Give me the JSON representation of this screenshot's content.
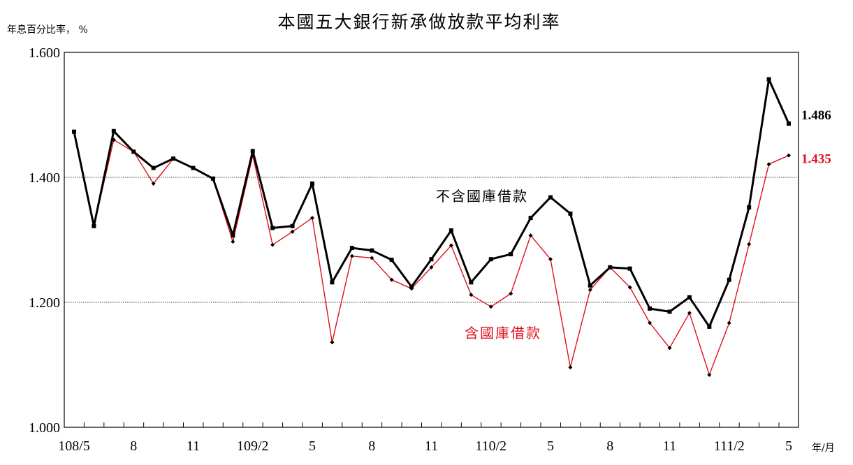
{
  "chart_data": {
    "type": "line",
    "title": "本國五大銀行新承做放款平均利率",
    "ylabel": "年息百分比率，  %",
    "xlabel": "年/月",
    "ylim": [
      1.0,
      1.6
    ],
    "yticks": [
      "1.000",
      "1.200",
      "1.400",
      "1.600"
    ],
    "gridlines": [
      1.2,
      1.4
    ],
    "x": [
      "108/5",
      "108/6",
      "108/7",
      "108/8",
      "108/9",
      "108/10",
      "108/11",
      "108/12",
      "109/1",
      "109/2",
      "109/3",
      "109/4",
      "109/5",
      "109/6",
      "109/7",
      "109/8",
      "109/9",
      "109/10",
      "109/11",
      "109/12",
      "110/1",
      "110/2",
      "110/3",
      "110/4",
      "110/5",
      "110/6",
      "110/7",
      "110/8",
      "110/9",
      "110/10",
      "110/11",
      "110/12",
      "111/1",
      "111/2",
      "111/3",
      "111/4",
      "111/5"
    ],
    "xtick_labels": [
      {
        "x": "108/5",
        "label": "108/5"
      },
      {
        "x": "108/8",
        "label": "8"
      },
      {
        "x": "108/11",
        "label": "11"
      },
      {
        "x": "109/2",
        "label": "109/2"
      },
      {
        "x": "109/5",
        "label": "5"
      },
      {
        "x": "109/8",
        "label": "8"
      },
      {
        "x": "109/11",
        "label": "11"
      },
      {
        "x": "110/2",
        "label": "110/2"
      },
      {
        "x": "110/5",
        "label": "5"
      },
      {
        "x": "110/8",
        "label": "8"
      },
      {
        "x": "110/11",
        "label": "11"
      },
      {
        "x": "111/2",
        "label": "111/2"
      },
      {
        "x": "111/5",
        "label": "5"
      }
    ],
    "series": [
      {
        "name": "不含國庫借款",
        "color": "#000000",
        "values": [
          1.473,
          1.322,
          1.474,
          1.441,
          1.415,
          1.43,
          1.415,
          1.398,
          1.307,
          1.442,
          1.319,
          1.322,
          1.39,
          1.232,
          1.287,
          1.283,
          1.268,
          1.225,
          1.269,
          1.315,
          1.232,
          1.269,
          1.277,
          1.335,
          1.368,
          1.342,
          1.227,
          1.256,
          1.254,
          1.19,
          1.185,
          1.208,
          1.161,
          1.236,
          1.352,
          1.557,
          1.486
        ],
        "end_label": "1.486"
      },
      {
        "name": "含國庫借款",
        "color": "#e0101a",
        "values": [
          1.473,
          1.322,
          1.46,
          1.441,
          1.39,
          1.43,
          1.415,
          1.398,
          1.297,
          1.435,
          1.292,
          1.313,
          1.335,
          1.136,
          1.274,
          1.271,
          1.236,
          1.222,
          1.256,
          1.291,
          1.212,
          1.193,
          1.214,
          1.307,
          1.269,
          1.096,
          1.22,
          1.256,
          1.224,
          1.167,
          1.127,
          1.183,
          1.084,
          1.167,
          1.293,
          1.421,
          1.435
        ],
        "end_label": "1.435"
      }
    ]
  }
}
